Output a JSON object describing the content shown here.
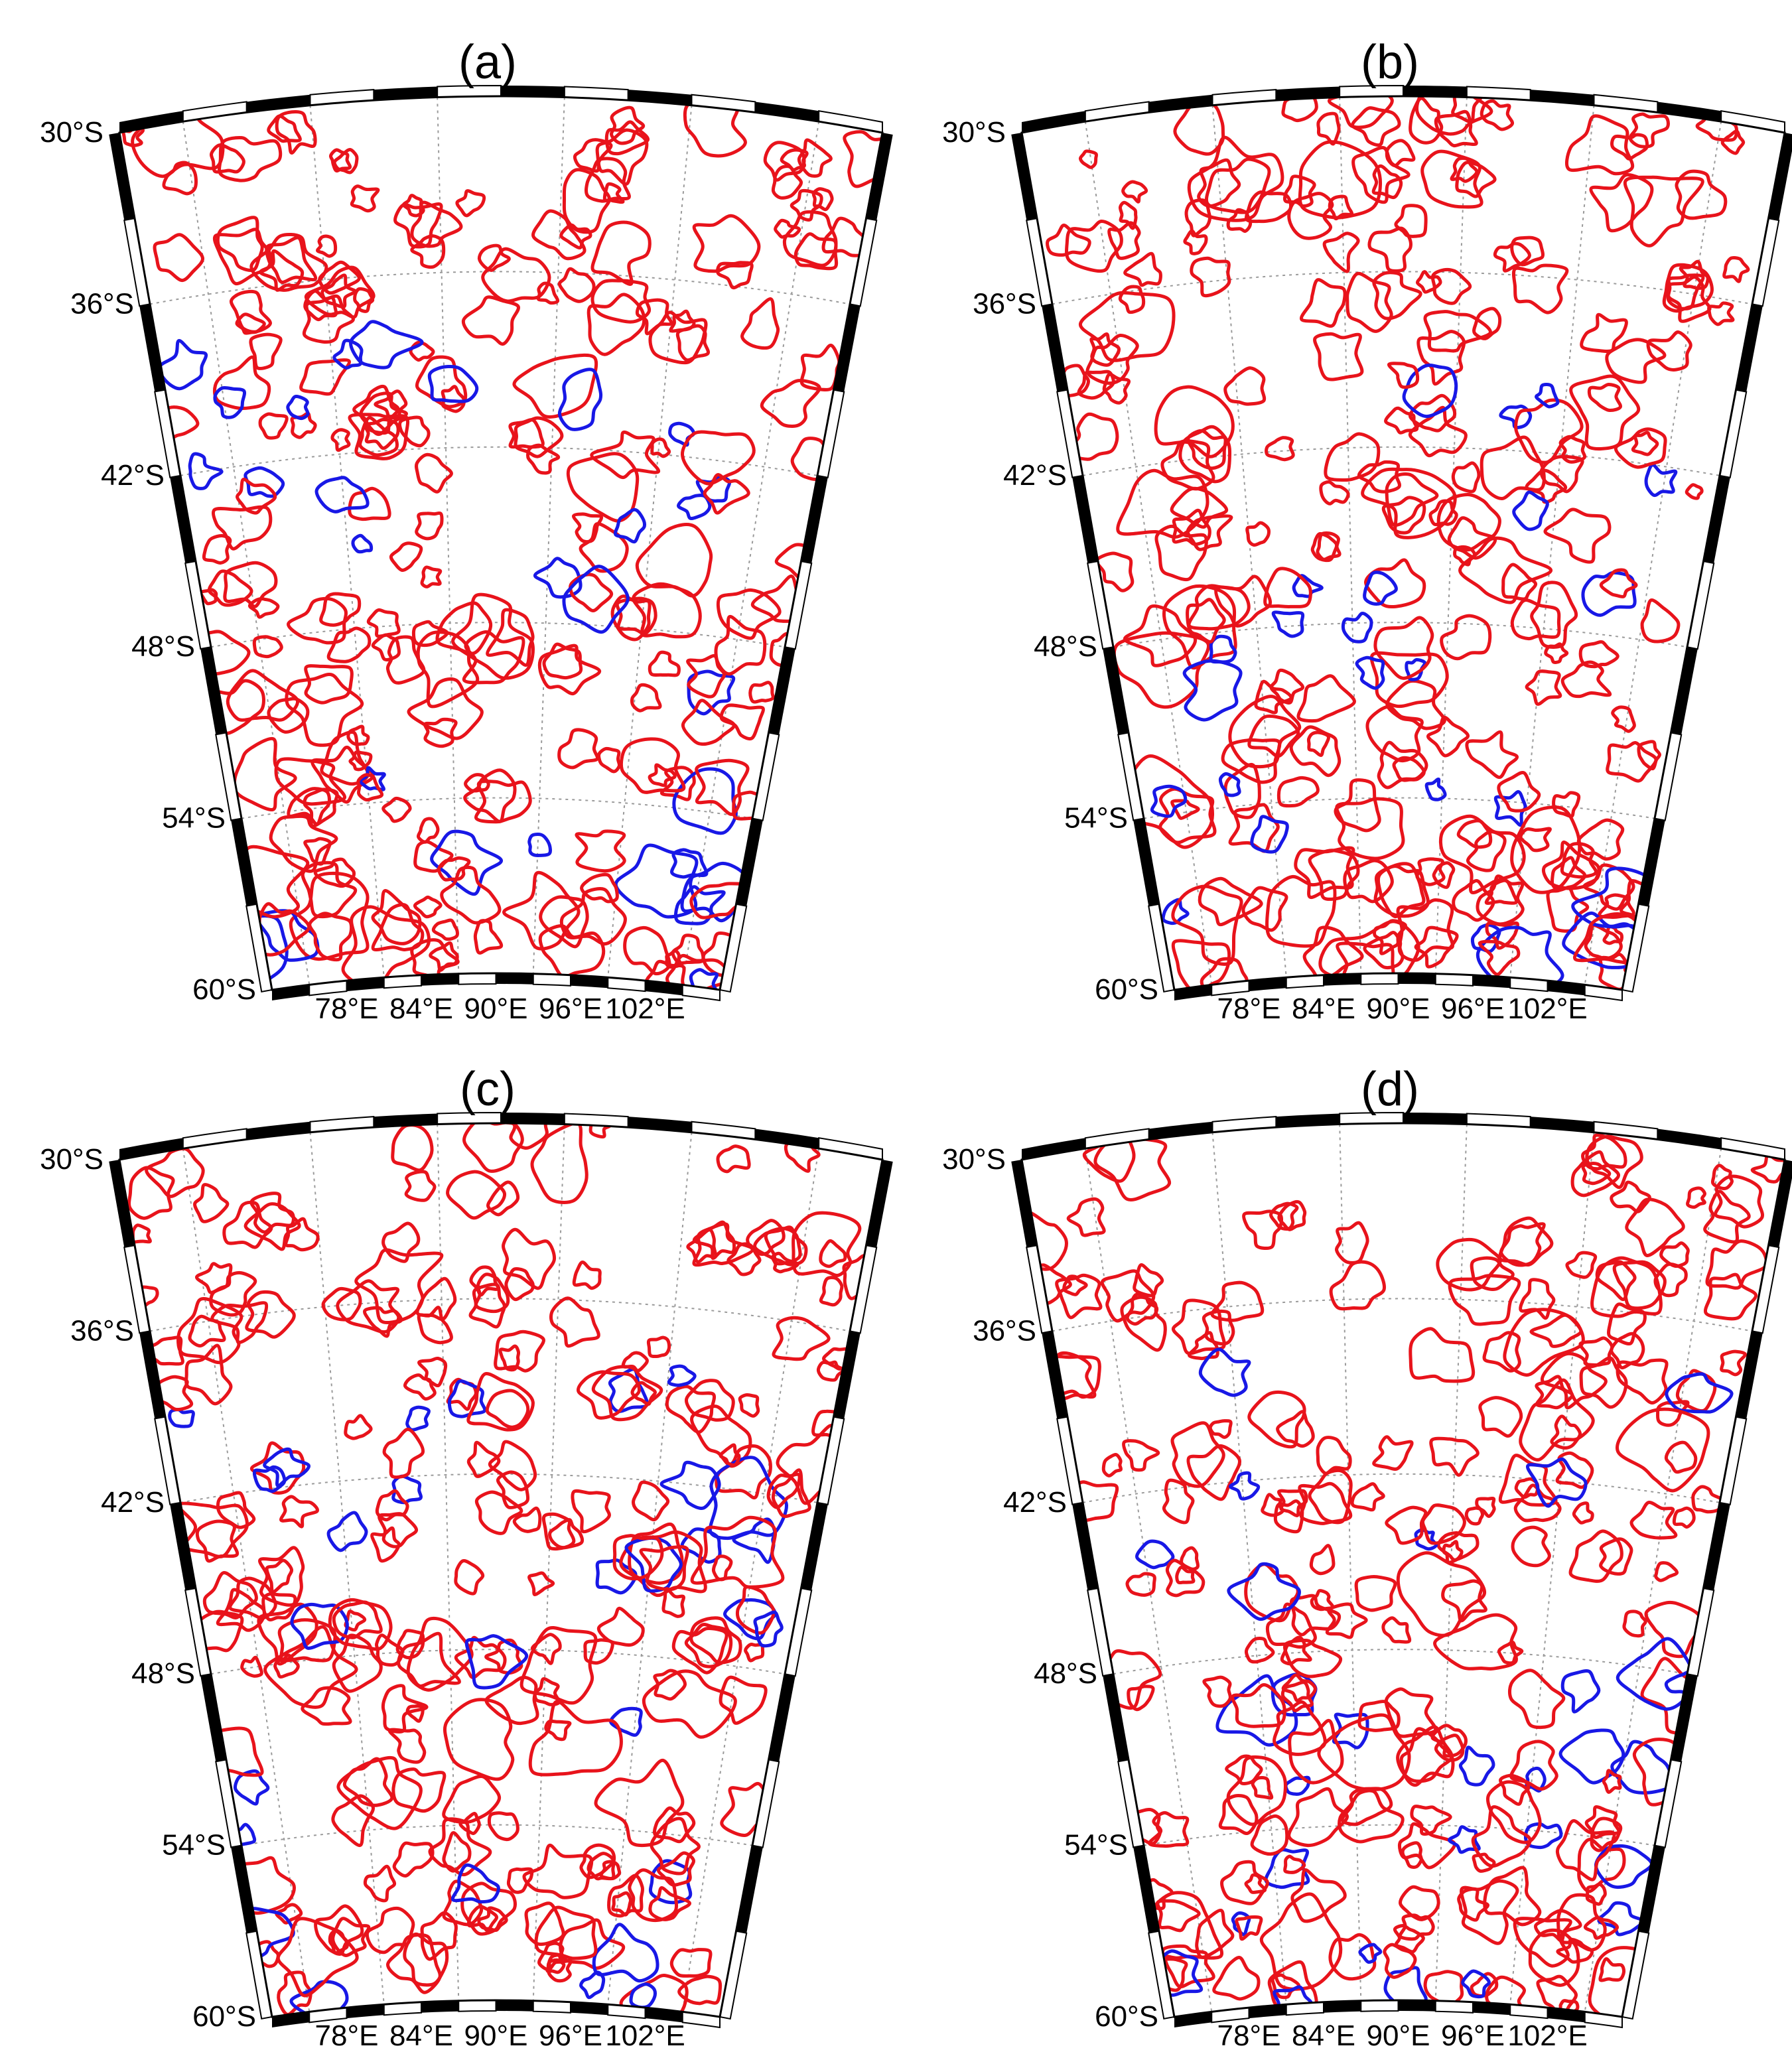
{
  "panels": [
    {
      "id": "a",
      "title": "(a)"
    },
    {
      "id": "b",
      "title": "(b)"
    },
    {
      "id": "c",
      "title": "(c)"
    },
    {
      "id": "d",
      "title": "(d)"
    }
  ],
  "latitude_labels": [
    "30°S",
    "36°S",
    "42°S",
    "48°S",
    "54°S",
    "60°S"
  ],
  "longitude_labels": [
    "78°E",
    "84°E",
    "90°E",
    "96°E",
    "102°E"
  ],
  "map": {
    "lat_range": [
      -60,
      -30
    ],
    "lon_range": [
      72,
      108
    ],
    "lat_ticks": [
      -30,
      -36,
      -42,
      -48,
      -54,
      -60
    ],
    "lon_ticks": [
      78,
      84,
      90,
      96,
      102
    ],
    "projection": "conic",
    "gridlines": "dotted"
  },
  "colors": {
    "positive_contour": "#e8131b",
    "negative_contour": "#1818e6",
    "frame": "#000000",
    "grid": "#9a9a9a"
  }
}
